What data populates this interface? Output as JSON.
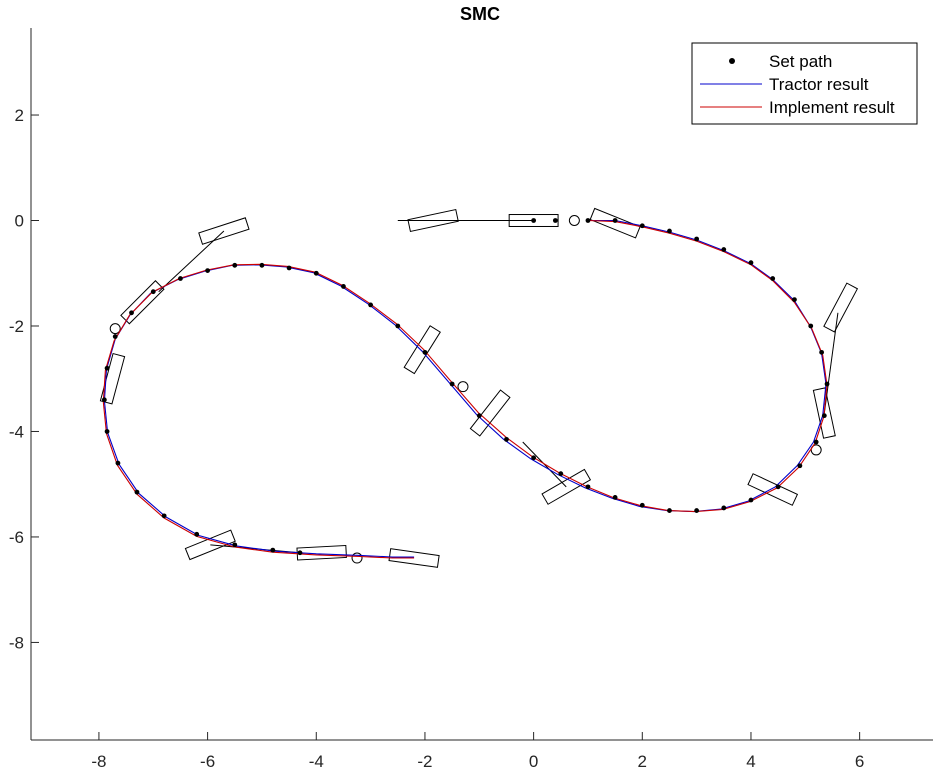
{
  "chart_data": {
    "type": "line",
    "title": "SMC",
    "xlabel": "",
    "ylabel": "",
    "xlim": [
      -9.25,
      7.35
    ],
    "ylim": [
      -9.85,
      3.65
    ],
    "xticks": [
      -8,
      -6,
      -4,
      -2,
      0,
      2,
      4,
      6
    ],
    "yticks": [
      2,
      0,
      -2,
      -4,
      -6,
      -8
    ],
    "xtick_labels": [
      "-8",
      "-6",
      "-4",
      "-2",
      "0",
      "2",
      "4",
      "6"
    ],
    "ytick_labels": [
      "2",
      "0",
      "-2",
      "-4",
      "-6",
      "-8"
    ],
    "grid": false,
    "legend_position": "top-right",
    "legend": [
      {
        "label": "Set path",
        "style": "marker",
        "color": "#000000"
      },
      {
        "label": "Tractor result",
        "style": "line",
        "color": "#0000cc"
      },
      {
        "label": "Implement result",
        "style": "line",
        "color": "#cc0000"
      }
    ],
    "series": [
      {
        "name": "Set path",
        "color": "#000000",
        "marker": "dot",
        "points": [
          [
            0,
            0
          ],
          [
            0.4,
            0
          ],
          [
            1.0,
            0
          ],
          [
            1.5,
            0
          ],
          [
            2.0,
            -0.1
          ],
          [
            2.5,
            -0.2
          ],
          [
            3.0,
            -0.35
          ],
          [
            3.5,
            -0.55
          ],
          [
            4.0,
            -0.8
          ],
          [
            4.4,
            -1.1
          ],
          [
            4.8,
            -1.5
          ],
          [
            5.1,
            -2.0
          ],
          [
            5.3,
            -2.5
          ],
          [
            5.4,
            -3.1
          ],
          [
            5.35,
            -3.7
          ],
          [
            5.2,
            -4.2
          ],
          [
            4.9,
            -4.65
          ],
          [
            4.5,
            -5.05
          ],
          [
            4.0,
            -5.3
          ],
          [
            3.5,
            -5.45
          ],
          [
            3.0,
            -5.5
          ],
          [
            2.5,
            -5.5
          ],
          [
            2.0,
            -5.4
          ],
          [
            1.5,
            -5.25
          ],
          [
            1.0,
            -5.05
          ],
          [
            0.5,
            -4.8
          ],
          [
            0.0,
            -4.5
          ],
          [
            -0.5,
            -4.15
          ],
          [
            -1.0,
            -3.7
          ],
          [
            -1.5,
            -3.1
          ],
          [
            -2.0,
            -2.5
          ],
          [
            -2.5,
            -2.0
          ],
          [
            -3.0,
            -1.6
          ],
          [
            -3.5,
            -1.25
          ],
          [
            -4.0,
            -1.0
          ],
          [
            -4.5,
            -0.9
          ],
          [
            -5.0,
            -0.85
          ],
          [
            -5.5,
            -0.85
          ],
          [
            -6.0,
            -0.95
          ],
          [
            -6.5,
            -1.1
          ],
          [
            -7.0,
            -1.35
          ],
          [
            -7.4,
            -1.75
          ],
          [
            -7.7,
            -2.2
          ],
          [
            -7.85,
            -2.8
          ],
          [
            -7.9,
            -3.4
          ],
          [
            -7.85,
            -4.0
          ],
          [
            -7.65,
            -4.6
          ],
          [
            -7.3,
            -5.15
          ],
          [
            -6.8,
            -5.6
          ],
          [
            -6.2,
            -5.95
          ],
          [
            -5.5,
            -6.15
          ],
          [
            -4.8,
            -6.25
          ],
          [
            -4.3,
            -6.3
          ]
        ]
      },
      {
        "name": "Tractor result",
        "color": "#0000cc",
        "points": [
          [
            1.0,
            0
          ],
          [
            1.5,
            0
          ],
          [
            2.0,
            -0.1
          ],
          [
            2.5,
            -0.22
          ],
          [
            3.0,
            -0.37
          ],
          [
            3.5,
            -0.57
          ],
          [
            4.0,
            -0.82
          ],
          [
            4.4,
            -1.12
          ],
          [
            4.8,
            -1.52
          ],
          [
            5.1,
            -2.02
          ],
          [
            5.3,
            -2.52
          ],
          [
            5.38,
            -3.1
          ],
          [
            5.32,
            -3.7
          ],
          [
            5.15,
            -4.2
          ],
          [
            4.85,
            -4.65
          ],
          [
            4.45,
            -5.05
          ],
          [
            3.95,
            -5.32
          ],
          [
            3.45,
            -5.47
          ],
          [
            2.95,
            -5.52
          ],
          [
            2.45,
            -5.5
          ],
          [
            1.95,
            -5.42
          ],
          [
            1.45,
            -5.27
          ],
          [
            0.95,
            -5.07
          ],
          [
            0.45,
            -4.82
          ],
          [
            -0.05,
            -4.52
          ],
          [
            -0.55,
            -4.15
          ],
          [
            -1.05,
            -3.68
          ],
          [
            -1.55,
            -3.08
          ],
          [
            -2.05,
            -2.48
          ],
          [
            -2.55,
            -1.98
          ],
          [
            -3.05,
            -1.58
          ],
          [
            -3.55,
            -1.24
          ],
          [
            -4.05,
            -0.99
          ],
          [
            -4.55,
            -0.88
          ],
          [
            -5.05,
            -0.84
          ],
          [
            -5.55,
            -0.85
          ],
          [
            -6.05,
            -0.96
          ],
          [
            -6.55,
            -1.12
          ],
          [
            -7.05,
            -1.38
          ],
          [
            -7.42,
            -1.78
          ],
          [
            -7.7,
            -2.25
          ],
          [
            -7.86,
            -2.82
          ],
          [
            -7.9,
            -3.42
          ],
          [
            -7.84,
            -4.02
          ],
          [
            -7.63,
            -4.62
          ],
          [
            -7.27,
            -5.17
          ],
          [
            -6.77,
            -5.62
          ],
          [
            -6.17,
            -5.97
          ],
          [
            -5.47,
            -6.17
          ],
          [
            -4.77,
            -6.27
          ],
          [
            -4.0,
            -6.32
          ],
          [
            -3.2,
            -6.35
          ],
          [
            -2.6,
            -6.38
          ],
          [
            -2.2,
            -6.38
          ]
        ]
      },
      {
        "name": "Implement result",
        "color": "#cc0000",
        "points": [
          [
            1.0,
            0
          ],
          [
            1.5,
            -0.02
          ],
          [
            2.0,
            -0.12
          ],
          [
            2.5,
            -0.24
          ],
          [
            3.0,
            -0.39
          ],
          [
            3.5,
            -0.59
          ],
          [
            4.0,
            -0.84
          ],
          [
            4.4,
            -1.14
          ],
          [
            4.8,
            -1.55
          ],
          [
            5.12,
            -2.05
          ],
          [
            5.32,
            -2.55
          ],
          [
            5.4,
            -3.12
          ],
          [
            5.34,
            -3.72
          ],
          [
            5.18,
            -4.22
          ],
          [
            4.88,
            -4.68
          ],
          [
            4.48,
            -5.07
          ],
          [
            3.98,
            -5.33
          ],
          [
            3.48,
            -5.48
          ],
          [
            2.98,
            -5.52
          ],
          [
            2.48,
            -5.5
          ],
          [
            1.98,
            -5.41
          ],
          [
            1.48,
            -5.26
          ],
          [
            0.98,
            -5.05
          ],
          [
            0.48,
            -4.79
          ],
          [
            -0.02,
            -4.48
          ],
          [
            -0.52,
            -4.1
          ],
          [
            -1.02,
            -3.64
          ],
          [
            -1.52,
            -3.05
          ],
          [
            -2.02,
            -2.45
          ],
          [
            -2.52,
            -1.96
          ],
          [
            -3.02,
            -1.57
          ],
          [
            -3.52,
            -1.23
          ],
          [
            -4.02,
            -0.98
          ],
          [
            -4.52,
            -0.87
          ],
          [
            -5.02,
            -0.83
          ],
          [
            -5.52,
            -0.84
          ],
          [
            -6.02,
            -0.94
          ],
          [
            -6.52,
            -1.1
          ],
          [
            -7.02,
            -1.36
          ],
          [
            -7.44,
            -1.8
          ],
          [
            -7.72,
            -2.28
          ],
          [
            -7.88,
            -2.84
          ],
          [
            -7.92,
            -3.44
          ],
          [
            -7.86,
            -4.04
          ],
          [
            -7.66,
            -4.64
          ],
          [
            -7.3,
            -5.19
          ],
          [
            -6.8,
            -5.64
          ],
          [
            -6.2,
            -5.99
          ],
          [
            -5.5,
            -6.19
          ],
          [
            -4.8,
            -6.29
          ],
          [
            -4.0,
            -6.34
          ],
          [
            -3.2,
            -6.37
          ],
          [
            -2.6,
            -6.4
          ],
          [
            -2.2,
            -6.4
          ]
        ]
      }
    ],
    "vehicles": [
      {
        "cx": -1.85,
        "cy": 0.0,
        "angle": 12,
        "circle": null
      },
      {
        "cx": 0.0,
        "cy": 0.0,
        "angle": 0,
        "circle": [
          0.75,
          0.0
        ]
      },
      {
        "cx": 1.5,
        "cy": -0.05,
        "angle": -22,
        "circle": null
      },
      {
        "cx": -5.7,
        "cy": -0.2,
        "angle": 18,
        "circle": null
      },
      {
        "cx": -7.2,
        "cy": -1.55,
        "angle": 45,
        "circle": [
          -7.7,
          -2.05
        ]
      },
      {
        "cx": -7.75,
        "cy": -3.0,
        "angle": 75,
        "circle": null
      },
      {
        "cx": -2.05,
        "cy": -2.45,
        "angle": 58,
        "circle": [
          -1.3,
          -3.15
        ]
      },
      {
        "cx": -0.8,
        "cy": -3.65,
        "angle": 52,
        "circle": null
      },
      {
        "cx": 0.6,
        "cy": -5.05,
        "angle": 30,
        "circle": null
      },
      {
        "cx": 5.65,
        "cy": -1.65,
        "angle": 62,
        "circle": null
      },
      {
        "cx": 5.35,
        "cy": -3.65,
        "angle": 102,
        "circle": [
          5.2,
          -4.35
        ]
      },
      {
        "cx": 4.4,
        "cy": -5.1,
        "angle": -25,
        "circle": null
      },
      {
        "cx": -5.95,
        "cy": -6.15,
        "angle": 22,
        "circle": null
      },
      {
        "cx": -3.9,
        "cy": -6.3,
        "angle": 3,
        "circle": [
          -3.25,
          -6.4
        ]
      },
      {
        "cx": -2.2,
        "cy": -6.4,
        "angle": -8,
        "circle": null
      }
    ],
    "hitches": [
      [
        [
          -5.7,
          -0.2
        ],
        [
          -6.9,
          -1.35
        ]
      ],
      [
        [
          5.6,
          -1.75
        ],
        [
          5.35,
          -3.65
        ]
      ],
      [
        [
          -0.2,
          -4.2
        ],
        [
          0.6,
          -5.05
        ]
      ],
      [
        [
          -5.95,
          -6.15
        ],
        [
          -4.3,
          -6.3
        ]
      ],
      [
        [
          -2.5,
          0.0
        ],
        [
          0.0,
          0.0
        ]
      ]
    ]
  },
  "colors": {
    "axis": "#262626",
    "background": "#ffffff"
  }
}
